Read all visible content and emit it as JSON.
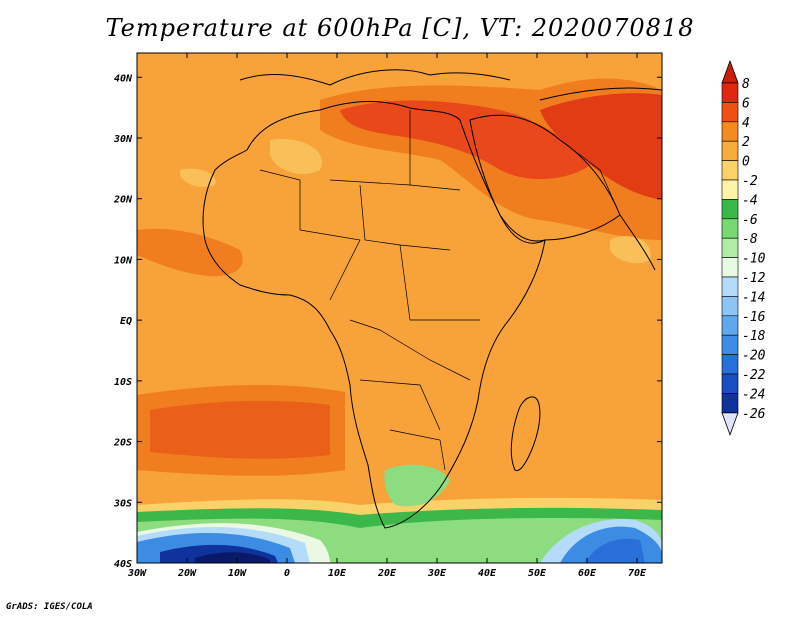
{
  "title": "Temperature at 600hPa [C], VT: 2020070818",
  "footer": "GrADS: IGES/COLA",
  "map": {
    "lon_ticks": [
      "30W",
      "20W",
      "10W",
      "0",
      "10E",
      "20E",
      "30E",
      "40E",
      "50E",
      "60E",
      "70E"
    ],
    "lat_ticks": [
      "40N",
      "30N",
      "20N",
      "10N",
      "EQ",
      "10S",
      "20S",
      "30S",
      "40S"
    ],
    "lon_range": [
      -30,
      75
    ],
    "lat_range": [
      -40,
      44
    ]
  },
  "colorbar": {
    "labels": [
      "8",
      "6",
      "4",
      "2",
      "0",
      "-2",
      "-4",
      "-6",
      "-8",
      "-10",
      "-12",
      "-14",
      "-16",
      "-18",
      "-20",
      "-22",
      "-24",
      "-26"
    ],
    "colors": [
      "#e02810",
      "#f05014",
      "#f48a22",
      "#f8ac3a",
      "#fad26a",
      "#fef4a8",
      "#3cb84a",
      "#78d872",
      "#b0eca4",
      "#e8fae4",
      "#b4dcf8",
      "#8cc4f4",
      "#60a8ee",
      "#3c8ce4",
      "#2870d8",
      "#1a4ec0",
      "#10329c",
      "#0a1a68"
    ],
    "over_color": "#c81e0a",
    "under_color": "#dfe4fa"
  },
  "field_colors": {
    "background": "#f8a23a",
    "warm": "#f07e1e",
    "hot": "#e8481a",
    "mild": "#f9c05a",
    "green": "#3cb84a",
    "light_green": "#8edc80",
    "pale": "#eaf8e4",
    "cyan": "#b4dcf8",
    "blue": "#3c8ce4",
    "dark_blue": "#10329c",
    "navy": "#0a1a68",
    "coast": "#000000"
  }
}
